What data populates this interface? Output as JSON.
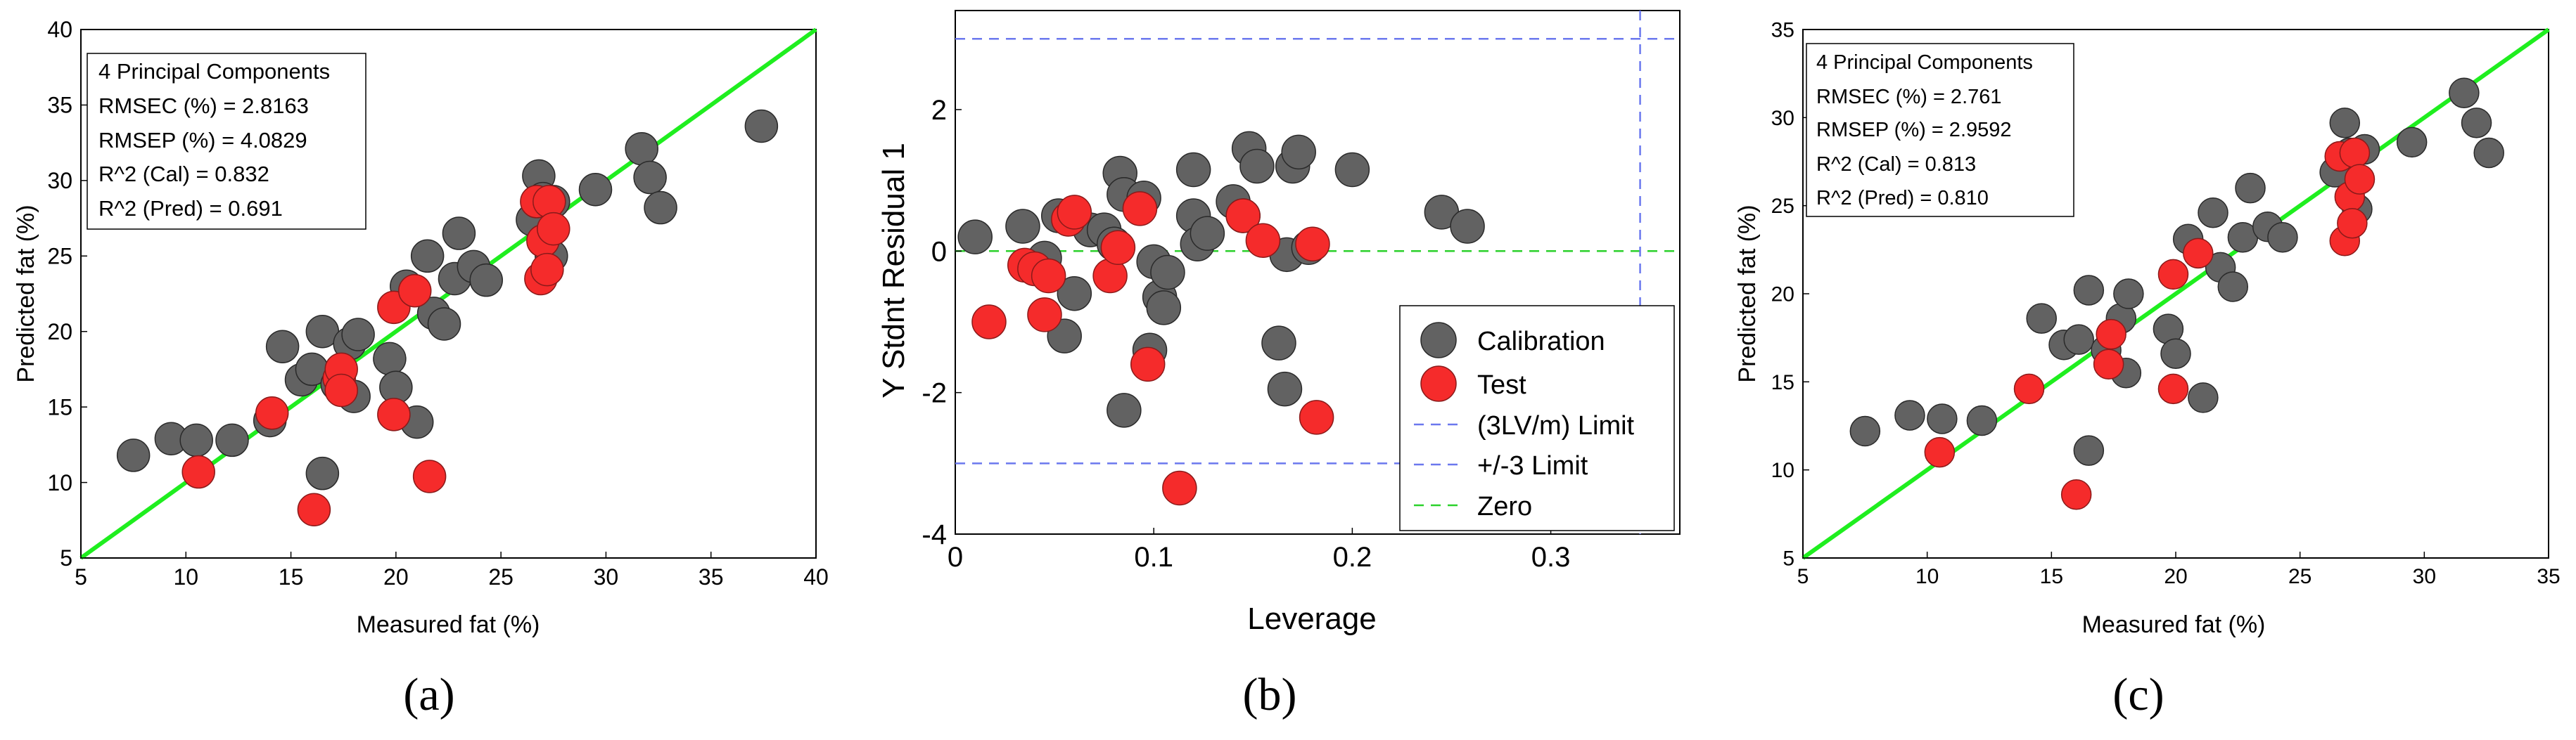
{
  "figure": {
    "caption_a": "(a)",
    "caption_b": "(b)",
    "caption_c": "(c)"
  },
  "colors": {
    "calibration": "#626262",
    "test": "#f52b2b",
    "fit_line": "#1fee1f",
    "limit_line": "#6b78ee",
    "zero_line": "#2bd12b"
  },
  "chart_data": [
    {
      "id": "a",
      "type": "scatter",
      "xlabel": "Measured fat (%)",
      "ylabel": "Predicted fat (%)",
      "xlim": [
        5,
        40
      ],
      "ylim": [
        5,
        40
      ],
      "xticks": [
        5,
        10,
        15,
        20,
        25,
        30,
        35,
        40
      ],
      "yticks": [
        5,
        10,
        15,
        20,
        25,
        30,
        35,
        40
      ],
      "grid": false,
      "identity_line": true,
      "stats_box": [
        "4 Principal Components",
        "RMSEC (%) = 2.8163",
        "RMSEP (%) = 4.0829",
        "R^2 (Cal) = 0.832",
        "R^2 (Pred) = 0.691"
      ],
      "series": [
        {
          "name": "Calibration",
          "points": [
            [
              7.5,
              11.8
            ],
            [
              9.3,
              12.9
            ],
            [
              10.5,
              12.8
            ],
            [
              12.2,
              12.8
            ],
            [
              14.0,
              14.1
            ],
            [
              14.6,
              19.0
            ],
            [
              15.5,
              16.8
            ],
            [
              16.0,
              17.5
            ],
            [
              16.5,
              10.6
            ],
            [
              16.5,
              20.0
            ],
            [
              17.2,
              16.5
            ],
            [
              17.8,
              19.2
            ],
            [
              18.0,
              15.7
            ],
            [
              18.2,
              19.8
            ],
            [
              19.7,
              18.2
            ],
            [
              20.0,
              16.3
            ],
            [
              20.5,
              23.0
            ],
            [
              21.0,
              14.0
            ],
            [
              21.5,
              25.0
            ],
            [
              21.8,
              21.2
            ],
            [
              22.3,
              20.5
            ],
            [
              22.8,
              23.5
            ],
            [
              23.0,
              26.5
            ],
            [
              23.7,
              24.3
            ],
            [
              24.3,
              23.4
            ],
            [
              26.5,
              27.4
            ],
            [
              26.8,
              30.3
            ],
            [
              27.0,
              28.8
            ],
            [
              27.4,
              25.0
            ],
            [
              27.5,
              28.6
            ],
            [
              29.5,
              29.4
            ],
            [
              31.7,
              32.1
            ],
            [
              32.1,
              30.2
            ],
            [
              32.6,
              28.2
            ],
            [
              37.4,
              33.6
            ]
          ]
        },
        {
          "name": "Test",
          "points": [
            [
              10.6,
              10.7
            ],
            [
              14.1,
              14.6
            ],
            [
              16.1,
              8.2
            ],
            [
              17.3,
              16.9
            ],
            [
              17.4,
              17.5
            ],
            [
              17.4,
              16.1
            ],
            [
              19.9,
              21.6
            ],
            [
              19.9,
              14.5
            ],
            [
              20.9,
              22.7
            ],
            [
              21.6,
              10.4
            ],
            [
              26.7,
              28.6
            ],
            [
              26.9,
              23.5
            ],
            [
              27.0,
              26.0
            ],
            [
              27.2,
              24.1
            ],
            [
              27.3,
              28.6
            ],
            [
              27.5,
              26.8
            ]
          ]
        }
      ]
    },
    {
      "id": "b",
      "type": "scatter",
      "xlabel": "Leverage",
      "ylabel": "Y Stdnt Residual 1",
      "xlim": [
        0,
        0.365
      ],
      "ylim": [
        -4,
        3.4
      ],
      "xticks": [
        0,
        0.1,
        0.2,
        0.3
      ],
      "xtick_labels": [
        "0",
        "0.1",
        "0.2",
        "0.3"
      ],
      "yticks": [
        -4,
        -2,
        0,
        2
      ],
      "ytick_labels": [
        "-4",
        "-2",
        "0",
        "2"
      ],
      "grid": false,
      "legend": [
        "Calibration",
        "Test",
        "(3LV/m) Limit",
        "+/-3 Limit",
        "Zero"
      ],
      "legend_position": "bottom-right",
      "leverage_limit": 0.345,
      "residual_limits": [
        3,
        -3
      ],
      "series": [
        {
          "name": "Calibration",
          "points": [
            [
              0.01,
              0.2
            ],
            [
              0.034,
              0.35
            ],
            [
              0.045,
              -0.1
            ],
            [
              0.052,
              0.5
            ],
            [
              0.055,
              -1.2
            ],
            [
              0.06,
              -0.6
            ],
            [
              0.068,
              0.3
            ],
            [
              0.075,
              0.3
            ],
            [
              0.08,
              0.1
            ],
            [
              0.083,
              1.1
            ],
            [
              0.085,
              -2.25
            ],
            [
              0.085,
              0.8
            ],
            [
              0.095,
              0.75
            ],
            [
              0.098,
              -1.4
            ],
            [
              0.1,
              -0.15
            ],
            [
              0.103,
              -0.65
            ],
            [
              0.105,
              -0.8
            ],
            [
              0.107,
              -0.3
            ],
            [
              0.12,
              1.15
            ],
            [
              0.12,
              0.5
            ],
            [
              0.122,
              0.1
            ],
            [
              0.127,
              0.25
            ],
            [
              0.14,
              0.7
            ],
            [
              0.145,
              0.5
            ],
            [
              0.148,
              1.45
            ],
            [
              0.152,
              1.2
            ],
            [
              0.163,
              -1.3
            ],
            [
              0.166,
              -1.95
            ],
            [
              0.167,
              -0.05
            ],
            [
              0.17,
              1.2
            ],
            [
              0.173,
              1.4
            ],
            [
              0.178,
              0.05
            ],
            [
              0.2,
              1.15
            ],
            [
              0.245,
              0.55
            ],
            [
              0.258,
              0.35
            ]
          ]
        },
        {
          "name": "Test",
          "points": [
            [
              0.017,
              -1.0
            ],
            [
              0.035,
              -0.2
            ],
            [
              0.04,
              -0.25
            ],
            [
              0.045,
              -0.9
            ],
            [
              0.047,
              -0.35
            ],
            [
              0.057,
              0.45
            ],
            [
              0.06,
              0.55
            ],
            [
              0.078,
              -0.35
            ],
            [
              0.082,
              0.05
            ],
            [
              0.093,
              0.6
            ],
            [
              0.097,
              -1.6
            ],
            [
              0.113,
              -3.35
            ],
            [
              0.145,
              0.5
            ],
            [
              0.155,
              0.15
            ],
            [
              0.18,
              0.1
            ],
            [
              0.182,
              -2.35
            ]
          ]
        }
      ]
    },
    {
      "id": "c",
      "type": "scatter",
      "xlabel": "Measured fat (%)",
      "ylabel": "Predicted fat (%)",
      "xlim": [
        5,
        35
      ],
      "ylim": [
        5,
        35
      ],
      "xticks": [
        5,
        10,
        15,
        20,
        25,
        30,
        35
      ],
      "yticks": [
        5,
        10,
        15,
        20,
        25,
        30,
        35
      ],
      "grid": false,
      "identity_line": true,
      "stats_box": [
        "4 Principal Components",
        "RMSEC (%) = 2.761",
        "RMSEP (%) = 2.9592",
        "R^2 (Cal) = 0.813",
        "R^2 (Pred) = 0.810"
      ],
      "series": [
        {
          "name": "Calibration",
          "points": [
            [
              7.5,
              12.2
            ],
            [
              9.3,
              13.1
            ],
            [
              10.6,
              12.9
            ],
            [
              12.2,
              12.8
            ],
            [
              14.6,
              18.6
            ],
            [
              15.5,
              17.1
            ],
            [
              16.1,
              17.4
            ],
            [
              16.5,
              20.2
            ],
            [
              16.5,
              11.1
            ],
            [
              17.2,
              16.8
            ],
            [
              17.8,
              18.6
            ],
            [
              18.0,
              15.5
            ],
            [
              18.1,
              20.0
            ],
            [
              19.7,
              18.0
            ],
            [
              20.0,
              16.6
            ],
            [
              20.5,
              23.1
            ],
            [
              21.1,
              14.1
            ],
            [
              21.5,
              24.6
            ],
            [
              21.8,
              21.5
            ],
            [
              22.3,
              20.4
            ],
            [
              22.7,
              23.2
            ],
            [
              23.0,
              26.0
            ],
            [
              23.7,
              23.8
            ],
            [
              24.3,
              23.2
            ],
            [
              26.4,
              26.9
            ],
            [
              26.8,
              29.7
            ],
            [
              27.0,
              28.0
            ],
            [
              27.3,
              24.8
            ],
            [
              27.6,
              28.2
            ],
            [
              29.5,
              28.6
            ],
            [
              31.6,
              31.4
            ],
            [
              32.1,
              29.7
            ],
            [
              32.6,
              28.0
            ]
          ]
        },
        {
          "name": "Test",
          "points": [
            [
              10.5,
              11.0
            ],
            [
              14.1,
              14.6
            ],
            [
              16.0,
              8.6
            ],
            [
              17.4,
              17.7
            ],
            [
              17.3,
              16.0
            ],
            [
              19.9,
              21.1
            ],
            [
              19.9,
              14.6
            ],
            [
              20.9,
              22.3
            ],
            [
              26.6,
              27.8
            ],
            [
              26.8,
              23.0
            ],
            [
              27.0,
              25.5
            ],
            [
              27.1,
              24.0
            ],
            [
              27.2,
              28.0
            ],
            [
              27.4,
              26.5
            ]
          ]
        }
      ]
    }
  ]
}
